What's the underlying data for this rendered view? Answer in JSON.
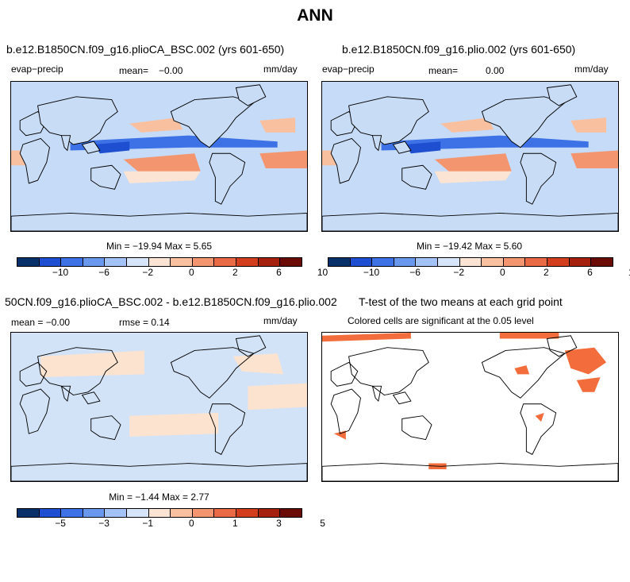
{
  "figure_title": "ANN",
  "colors": {
    "ten": [
      "#08306b",
      "#1e4fd0",
      "#3d72e6",
      "#6a98ef",
      "#a3c2f5",
      "#d6e5fa",
      "#fbe4d3",
      "#f9c0a0",
      "#f39670",
      "#e96a45",
      "#d23e1e",
      "#a6200e",
      "#6b0b06"
    ],
    "ocean_neg": "#c6dbf7",
    "ocean_pos": "#f5c9a8",
    "land": "#c8dcf6",
    "diff_neg": "#d3e3f7",
    "diff_pos": "#fce3d0",
    "sig": "#f26d3b"
  },
  "panels": {
    "top_left": {
      "title": "b.e12.B1850CN.f09_g16.plioCA_BSC.002 (yrs 601-650)",
      "variable": "evap−precip",
      "mean_label": "mean=",
      "mean_value": "−0.00",
      "units": "mm/day",
      "min_max": "Min = −19.94 Max =    5.65"
    },
    "top_right": {
      "title": "b.e12.B1850CN.f09_g16.plio.002 (yrs 601-650)",
      "variable": "evap−precip",
      "mean_label": "mean=",
      "mean_value": "0.00",
      "units": "mm/day",
      "min_max": "Min = −19.42 Max =    5.60"
    },
    "bottom_left": {
      "title": "50CN.f09_g16.plioCA_BSC.002 - b.e12.B1850CN.f09_g16.plio.002",
      "mean_text": "mean =  −0.00",
      "rmse_text": "rmse =   0.14",
      "units": "mm/day",
      "min_max": "Min =  −1.44 Max =    2.77"
    },
    "bottom_right": {
      "title": "T-test of the two means at each grid point",
      "subtitle": "Colored cells are significant at the 0.05 level"
    }
  },
  "colorbars": {
    "top_ticks": [
      "−10",
      "−6",
      "−2",
      "0",
      "2",
      "6",
      "10"
    ],
    "bottom_ticks": [
      "−5",
      "−3",
      "−1",
      "0",
      "1",
      "3",
      "5"
    ]
  }
}
